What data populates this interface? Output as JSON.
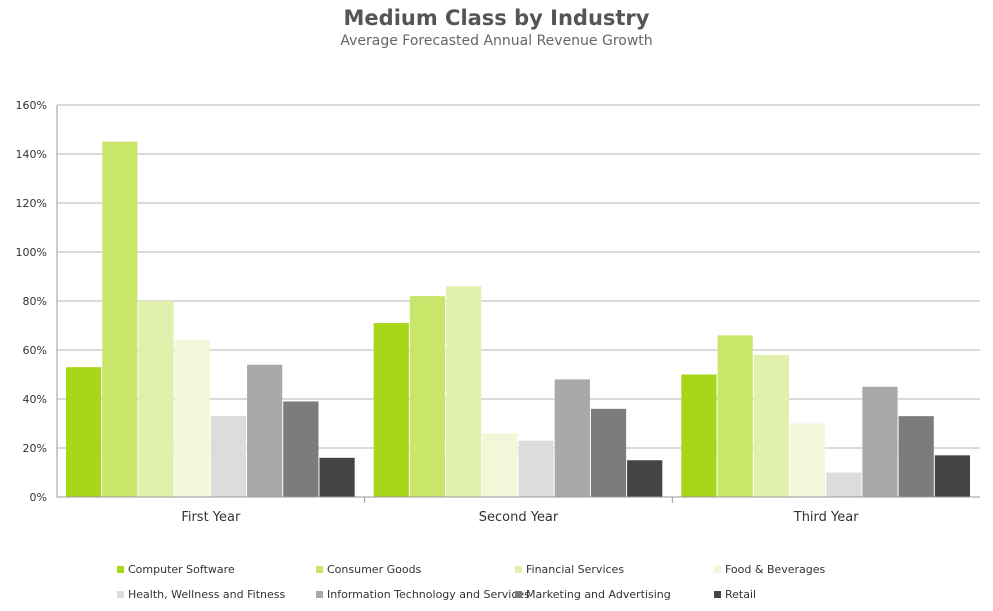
{
  "chart_data": {
    "type": "bar",
    "title": "Medium Class by Industry",
    "subtitle": "Average Forecasted Annual Revenue Growth",
    "xlabel": "",
    "ylabel": "",
    "ylim": [
      0,
      160
    ],
    "yticks": [
      "0%",
      "20%",
      "40%",
      "60%",
      "80%",
      "100%",
      "120%",
      "140%",
      "160%"
    ],
    "grid": true,
    "legend_position": "bottom",
    "categories": [
      "First Year",
      "Second Year",
      "Third Year"
    ],
    "series": [
      {
        "name": "Computer Software",
        "color": "#a8d71a",
        "values": [
          53,
          71,
          50
        ]
      },
      {
        "name": "Consumer Goods",
        "color": "#c9e66b",
        "values": [
          145,
          82,
          66
        ]
      },
      {
        "name": "Financial Services",
        "color": "#e1f1ad",
        "values": [
          80,
          86,
          58
        ]
      },
      {
        "name": "Food & Beverages",
        "color": "#f1f7d8",
        "values": [
          64,
          26,
          30
        ]
      },
      {
        "name": "Health, Wellness and Fitness",
        "color": "#dcdcdc",
        "values": [
          33,
          23,
          10
        ]
      },
      {
        "name": "Information Technology and Services",
        "color": "#a9a9a9",
        "values": [
          54,
          48,
          45
        ]
      },
      {
        "name": "Marketing and Advertising",
        "color": "#7c7c7c",
        "values": [
          39,
          36,
          33
        ]
      },
      {
        "name": "Retail",
        "color": "#444444",
        "values": [
          16,
          15,
          17
        ]
      }
    ]
  }
}
